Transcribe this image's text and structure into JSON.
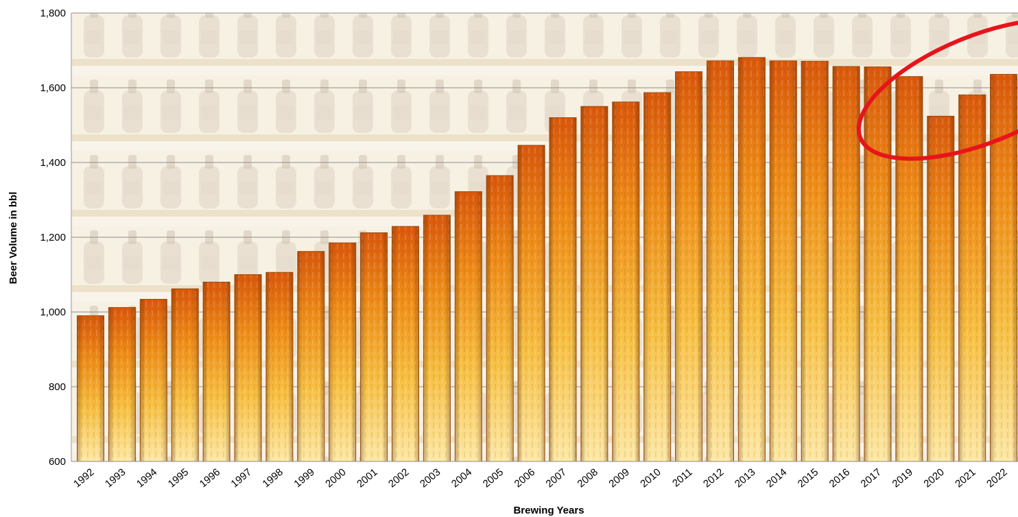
{
  "chart_data": {
    "type": "bar",
    "title": "",
    "xlabel": "Brewing Years",
    "ylabel": "Beer  Volume in bbl",
    "ylim": [
      600,
      1800
    ],
    "yticks": [
      600,
      800,
      1000,
      1200,
      1400,
      1600,
      1800
    ],
    "ytick_labels": [
      "600",
      "800",
      "1,000",
      "1,200",
      "1,400",
      "1,600",
      "1,800"
    ],
    "grid": true,
    "legend": "none",
    "categories": [
      "1992",
      "1993",
      "1994",
      "1995",
      "1996",
      "1997",
      "1998",
      "1999",
      "2000",
      "2001",
      "2002",
      "2003",
      "2004",
      "2005",
      "2006",
      "2007",
      "2008",
      "2009",
      "2010",
      "2011",
      "2012",
      "2013",
      "2014",
      "2015",
      "2016",
      "2017",
      "2019",
      "2020",
      "2021",
      "2022"
    ],
    "values": [
      990,
      1012,
      1034,
      1062,
      1080,
      1100,
      1106,
      1162,
      1185,
      1212,
      1229,
      1259,
      1322,
      1365,
      1446,
      1520,
      1550,
      1562,
      1587,
      1643,
      1672,
      1681,
      1672,
      1671,
      1657,
      1656,
      1630,
      1524,
      1581,
      1636
    ],
    "annotation": {
      "type": "ellipse-highlight",
      "color": "#e8141b",
      "covers": [
        "2019",
        "2020",
        "2021",
        "2022"
      ]
    },
    "colors": {
      "bar_top": "#e2650e",
      "bar_mid": "#f0a01e",
      "bar_bottom": "#fde49a",
      "bar_edge": "#a8500c",
      "background_shelf": "#efe4c8",
      "background_wall": "#f5eede"
    }
  }
}
